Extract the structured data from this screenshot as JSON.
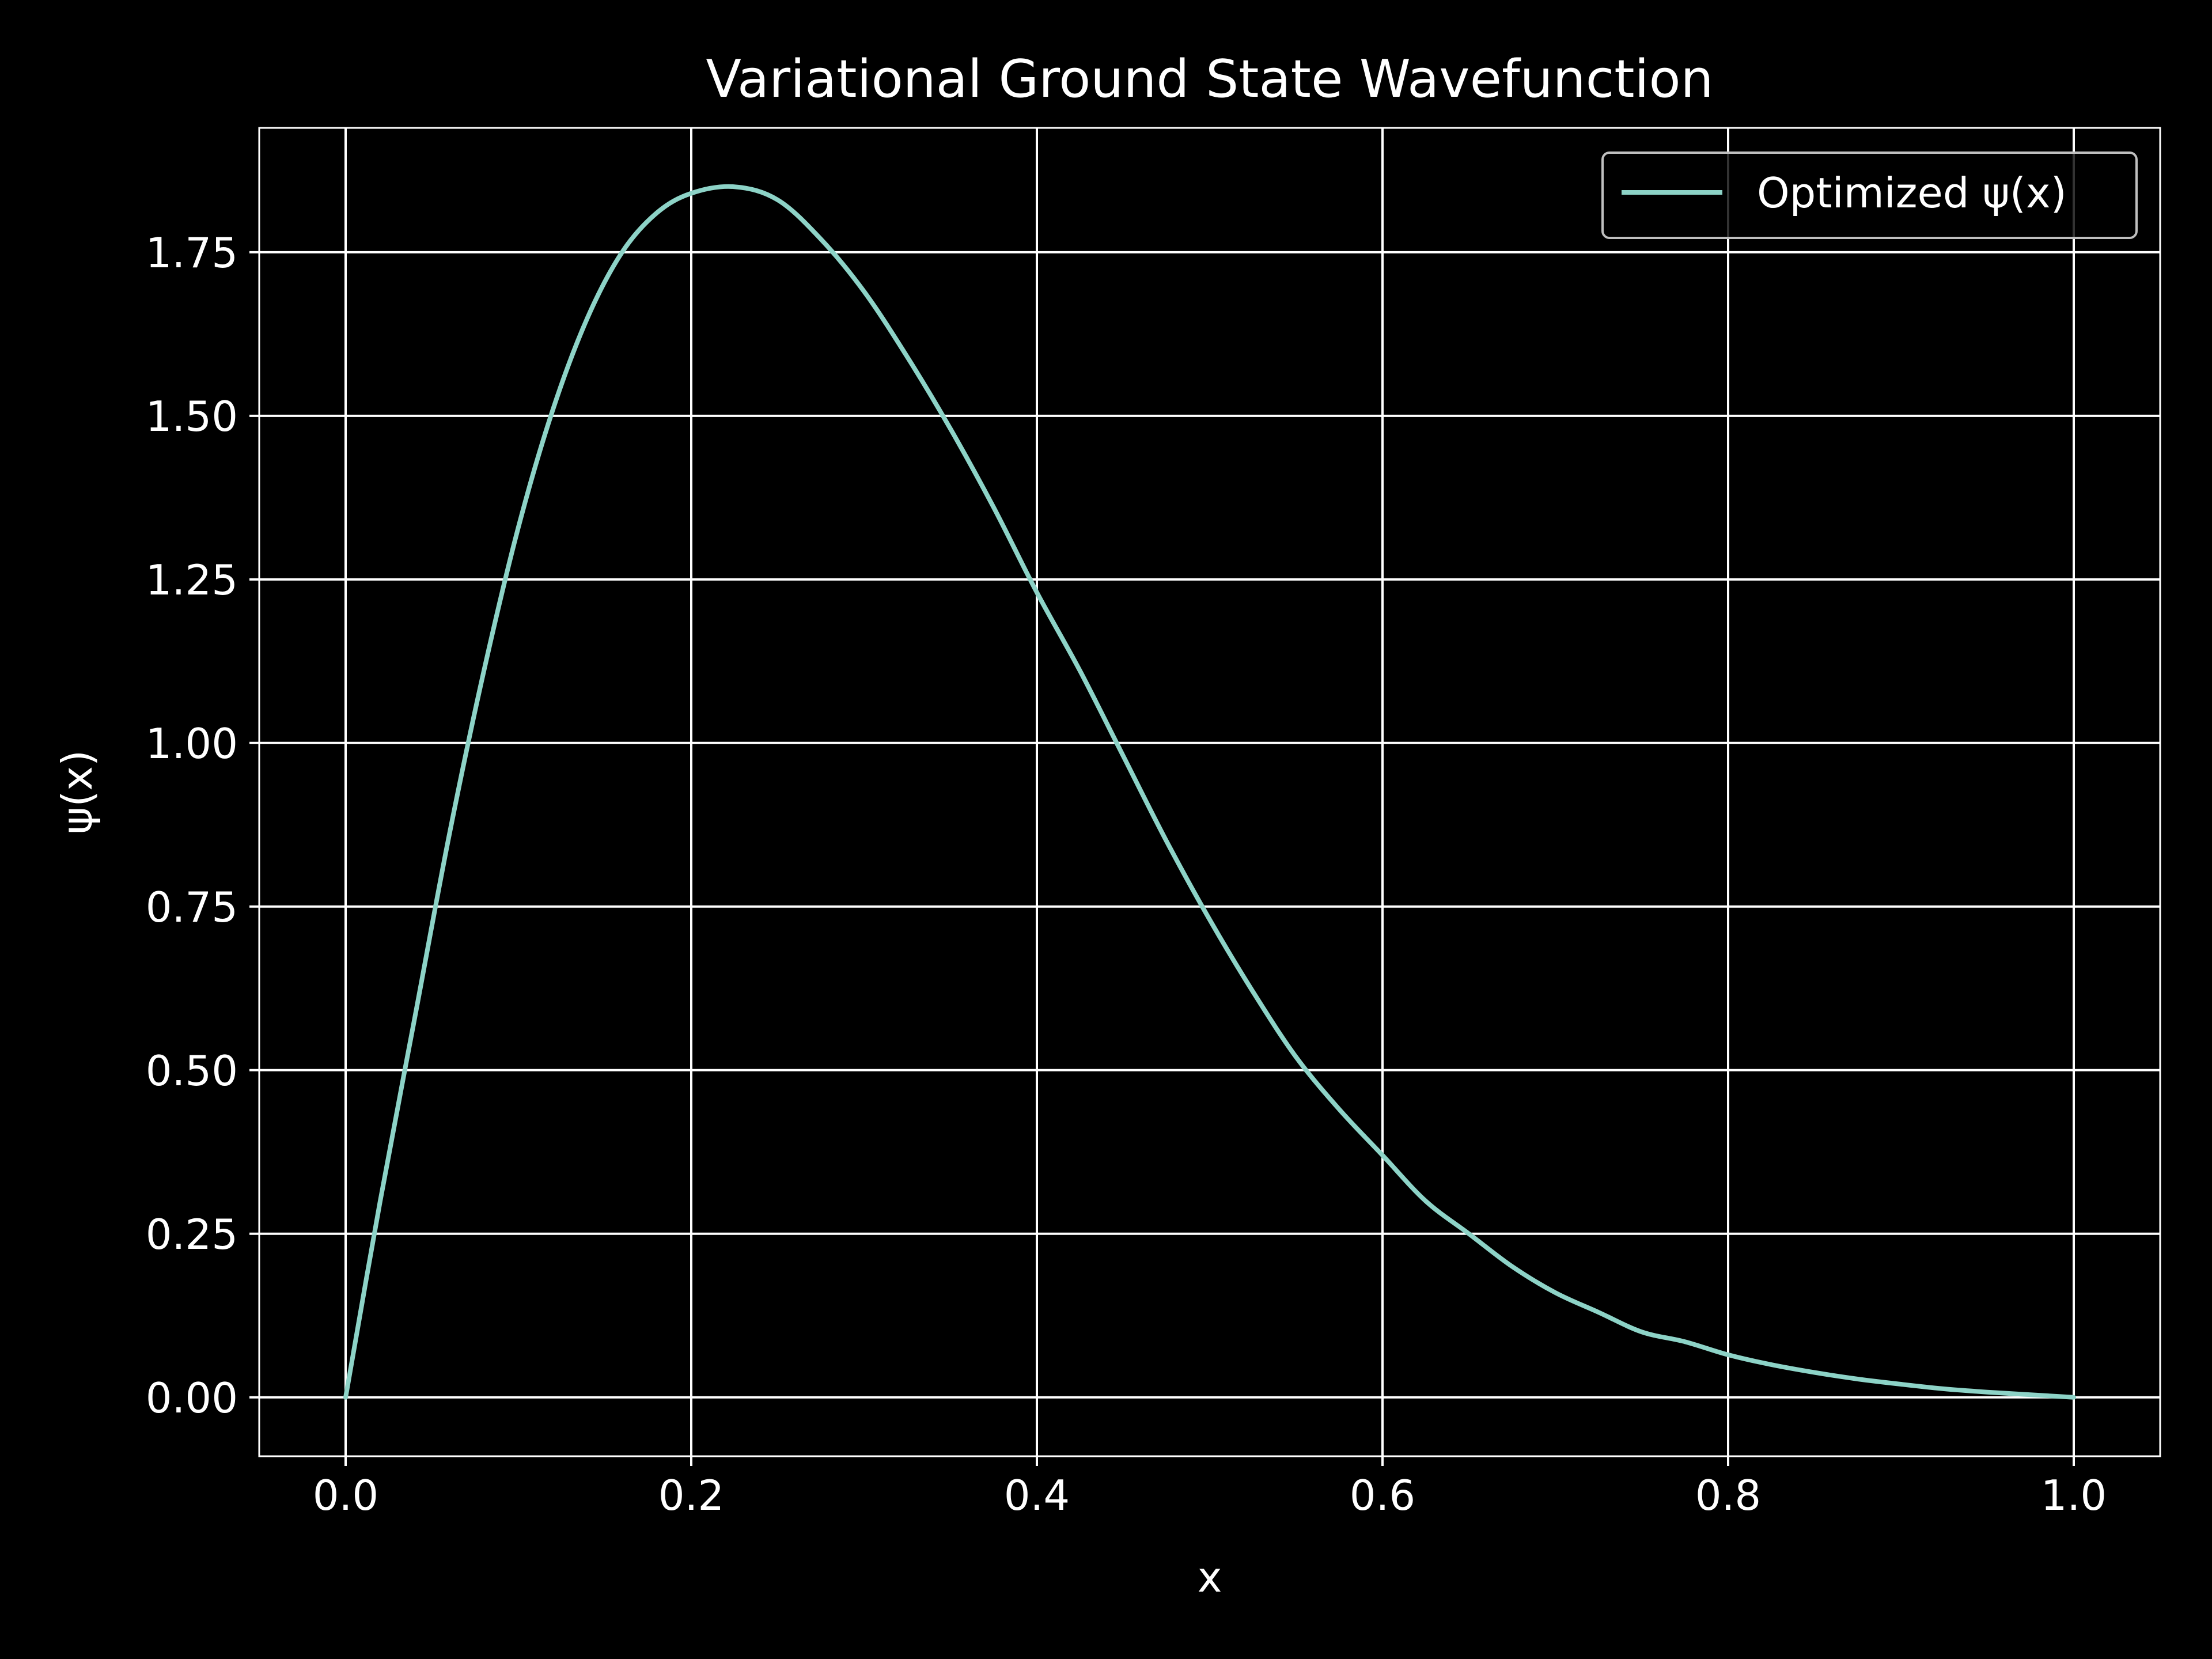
{
  "chart_data": {
    "type": "line",
    "title": "Variational Ground State Wavefunction",
    "xlabel": "x",
    "ylabel": "ψ(x)",
    "xlim": [
      -0.05,
      1.05
    ],
    "ylim": [
      -0.09,
      1.94
    ],
    "xticks": [
      0.0,
      0.2,
      0.4,
      0.6,
      0.8,
      1.0
    ],
    "xtick_labels": [
      "0.0",
      "0.2",
      "0.4",
      "0.6",
      "0.8",
      "1.0"
    ],
    "yticks": [
      0.0,
      0.25,
      0.5,
      0.75,
      1.0,
      1.25,
      1.5,
      1.75
    ],
    "ytick_labels": [
      "0.00",
      "0.25",
      "0.50",
      "0.75",
      "1.00",
      "1.25",
      "1.50",
      "1.75"
    ],
    "grid": true,
    "legend_position": "top-right",
    "background": "#000000",
    "foreground": "#ffffff",
    "series": [
      {
        "name": "Optimized ψ(x)",
        "color": "#8dd3c7",
        "x": [
          0.0,
          0.02,
          0.04,
          0.06,
          0.08,
          0.1,
          0.12,
          0.14,
          0.16,
          0.18,
          0.2,
          0.225,
          0.25,
          0.275,
          0.3,
          0.325,
          0.35,
          0.375,
          0.4,
          0.425,
          0.45,
          0.475,
          0.5,
          0.525,
          0.55,
          0.575,
          0.6,
          0.625,
          0.65,
          0.675,
          0.7,
          0.725,
          0.75,
          0.775,
          0.8,
          0.825,
          0.85,
          0.875,
          0.9,
          0.925,
          0.95,
          0.975,
          1.0
        ],
        "y": [
          0.0,
          0.3,
          0.58,
          0.86,
          1.11,
          1.33,
          1.51,
          1.65,
          1.75,
          1.81,
          1.84,
          1.85,
          1.83,
          1.77,
          1.69,
          1.59,
          1.48,
          1.36,
          1.23,
          1.11,
          0.98,
          0.85,
          0.73,
          0.62,
          0.52,
          0.44,
          0.37,
          0.3,
          0.25,
          0.2,
          0.16,
          0.13,
          0.1,
          0.085,
          0.065,
          0.05,
          0.038,
          0.028,
          0.02,
          0.013,
          0.008,
          0.004,
          0.0
        ]
      }
    ]
  }
}
